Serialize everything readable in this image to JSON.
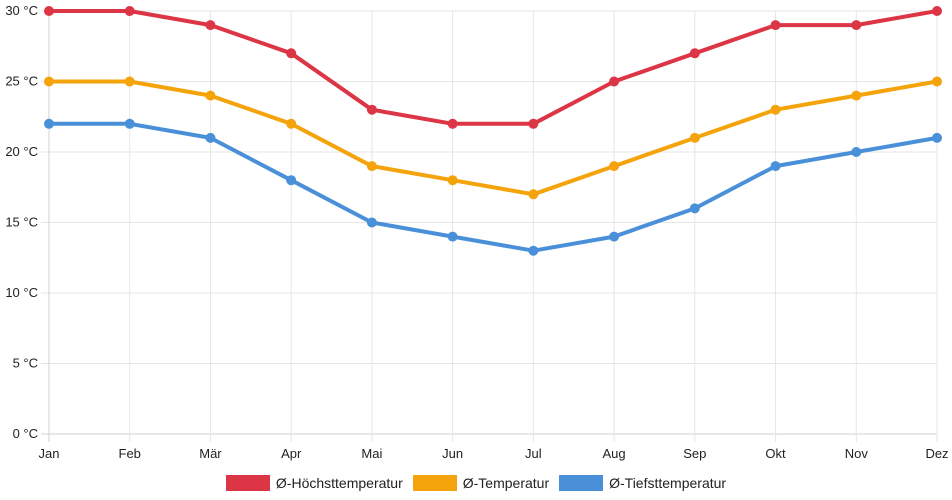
{
  "chart_data": {
    "type": "line",
    "categories": [
      "Jan",
      "Feb",
      "Mär",
      "Apr",
      "Mai",
      "Jun",
      "Jul",
      "Aug",
      "Sep",
      "Okt",
      "Nov",
      "Dez"
    ],
    "y_ticks": [
      "0 °C",
      "5 °C",
      "10 °C",
      "15 °C",
      "20 °C",
      "25 °C",
      "30 °C"
    ],
    "ylim": [
      0,
      30
    ],
    "grid": true,
    "legend_position": "bottom",
    "series": [
      {
        "name": "Ø-Höchsttemperatur",
        "color": "#dc3545",
        "values": [
          30,
          30,
          29,
          27,
          23,
          22,
          22,
          25,
          27,
          29,
          29,
          30
        ]
      },
      {
        "name": "Ø-Temperatur",
        "color": "#f5a30a",
        "values": [
          25,
          25,
          24,
          22,
          19,
          18,
          17,
          19,
          21,
          23,
          24,
          25
        ]
      },
      {
        "name": "Ø-Tiefsttemperatur",
        "color": "#4a90d9",
        "values": [
          22,
          22,
          21,
          18,
          15,
          14,
          13,
          14,
          16,
          19,
          20,
          21
        ]
      }
    ]
  }
}
